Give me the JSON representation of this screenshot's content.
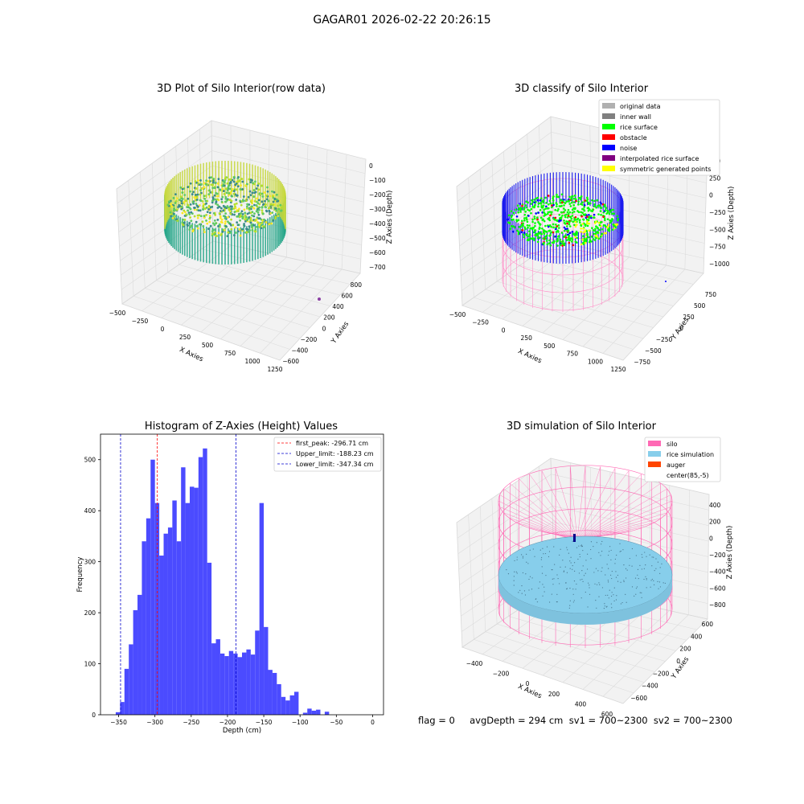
{
  "suptitle": "GAGAR01 2026-02-22 20:26:15",
  "footer": "flag = 0     avgDepth = 294 cm  sv1 = 700~2300  sv2 = 700~2300",
  "chart_data": [
    {
      "type": "scatter3d",
      "title": "3D Plot of Silo Interior(row data)",
      "xlabel": "X Axies",
      "ylabel": "Y Axies",
      "zlabel": "Z Axies (Depth)",
      "xticks": [
        "−500",
        "−250",
        "0",
        "250",
        "500",
        "750",
        "1000",
        "1250"
      ],
      "yticks": [
        "−600",
        "−400",
        "−200",
        "0",
        "200",
        "400",
        "600",
        "800"
      ],
      "zticks": [
        "0",
        "−100",
        "−200",
        "−300",
        "−400",
        "−500",
        "−600",
        "−700"
      ],
      "colormap": "viridis"
    },
    {
      "type": "scatter3d",
      "title": "3D classify of Silo Interior",
      "xlabel": "X Axies",
      "ylabel": "Y Axies",
      "zlabel": "Z Axies (Depth)",
      "xticks": [
        "−500",
        "−250",
        "0",
        "250",
        "500",
        "750",
        "1000",
        "1250"
      ],
      "yticks": [
        "−750",
        "−500",
        "−250",
        "0",
        "250",
        "500",
        "750"
      ],
      "zticks": [
        "500",
        "250",
        "0",
        "−250",
        "−500",
        "−750",
        "−1000"
      ],
      "legend": [
        {
          "name": "original data",
          "color": "#b0b0b0"
        },
        {
          "name": "inner wall",
          "color": "#808080"
        },
        {
          "name": "rice surface",
          "color": "#00ff00"
        },
        {
          "name": "obstacle",
          "color": "#ff0000"
        },
        {
          "name": "noise",
          "color": "#0000ff"
        },
        {
          "name": "interpolated rice surface",
          "color": "#800080"
        },
        {
          "name": "symmetric generated points",
          "color": "#ffff00"
        }
      ],
      "legend_loc": "upper-right"
    },
    {
      "type": "bar",
      "title": "Histogram of Z-Axies (Height) Values",
      "xlabel": "Depth (cm)",
      "ylabel": "Frequency",
      "xlim": [
        -375,
        15
      ],
      "ylim": [
        0,
        550
      ],
      "xticks": [
        -350,
        -300,
        -250,
        -200,
        -150,
        -100,
        -50,
        0
      ],
      "yticks": [
        0,
        100,
        200,
        300,
        400,
        500
      ],
      "bin_start": -354,
      "bin_width": 6,
      "values": [
        5,
        25,
        90,
        138,
        205,
        235,
        340,
        385,
        500,
        415,
        312,
        355,
        367,
        420,
        340,
        485,
        415,
        447,
        445,
        505,
        522,
        298,
        140,
        148,
        120,
        115,
        125,
        120,
        113,
        122,
        128,
        118,
        165,
        415,
        172,
        88,
        82,
        60,
        35,
        28,
        38,
        45,
        0,
        4,
        12,
        8,
        10,
        0,
        6
      ],
      "bar_color": "#4b4bff",
      "lines": [
        {
          "name": "first_peak: -296.71 cm",
          "x": -296.71,
          "color": "#ff0000"
        },
        {
          "name": "Upper_limit: -188.23 cm",
          "x": -188.23,
          "color": "#0000cc"
        },
        {
          "name": "Lower_limit: -347.34 cm",
          "x": -347.34,
          "color": "#0000cc"
        }
      ],
      "legend_loc": "upper-right"
    },
    {
      "type": "surface3d",
      "title": "3D simulation of Silo Interior",
      "xlabel": "X Axies",
      "ylabel": "Y Axies",
      "zlabel": "Z Axies (Depth)",
      "xticks": [
        "−400",
        "−200",
        "0",
        "200",
        "400",
        "600"
      ],
      "yticks": [
        "−600",
        "−400",
        "−200",
        "0",
        "200",
        "400",
        "600"
      ],
      "zticks": [
        "400",
        "200",
        "0",
        "−200",
        "−400",
        "−600",
        "−800"
      ],
      "legend": [
        {
          "name": "silo",
          "color": "#ff69b4"
        },
        {
          "name": "rice simulation",
          "color": "#87ceeb"
        },
        {
          "name": "auger",
          "color": "#ff4500"
        },
        {
          "name": "center(85,-5)",
          "color": ""
        }
      ],
      "legend_loc": "upper-right"
    }
  ]
}
